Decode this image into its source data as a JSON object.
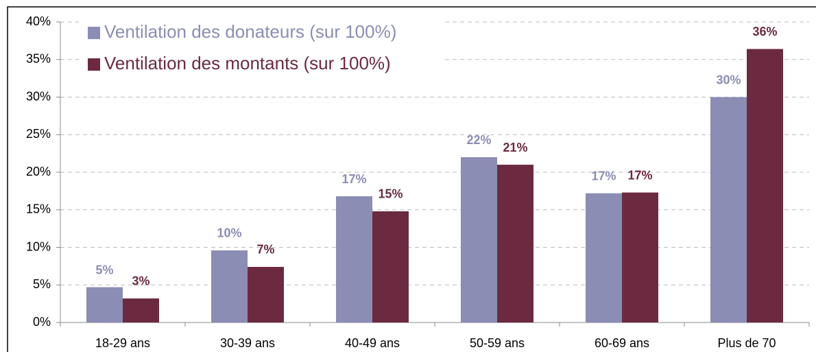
{
  "chart_data": {
    "type": "bar",
    "categories": [
      "18-29 ans",
      "30-39 ans",
      "40-49 ans",
      "50-59 ans",
      "60-69 ans",
      "Plus de 70"
    ],
    "series": [
      {
        "name": "Ventilation des donateurs (sur 100%)",
        "color": "#8b8db5",
        "values": [
          4.7,
          9.6,
          16.8,
          22,
          17.2,
          30
        ],
        "value_labels": [
          "5%",
          "10%",
          "17%",
          "22%",
          "17%",
          "30%"
        ]
      },
      {
        "name": "Ventilation des montants (sur 100%)",
        "color": "#6b2a40",
        "values": [
          3.2,
          7.4,
          14.8,
          21,
          17.3,
          36.4
        ],
        "value_labels": [
          "3%",
          "7%",
          "15%",
          "21%",
          "17%",
          "36%"
        ]
      }
    ],
    "ylim": [
      0,
      40
    ],
    "yticks": [
      {
        "value": 0,
        "label": "0%"
      },
      {
        "value": 5,
        "label": "5%"
      },
      {
        "value": 10,
        "label": "10%"
      },
      {
        "value": 15,
        "label": "15%"
      },
      {
        "value": 20,
        "label": "20%"
      },
      {
        "value": 25,
        "label": "25%"
      },
      {
        "value": 30,
        "label": "30%"
      },
      {
        "value": 35,
        "label": "35%"
      },
      {
        "value": 40,
        "label": "40%"
      }
    ],
    "grid": true
  }
}
